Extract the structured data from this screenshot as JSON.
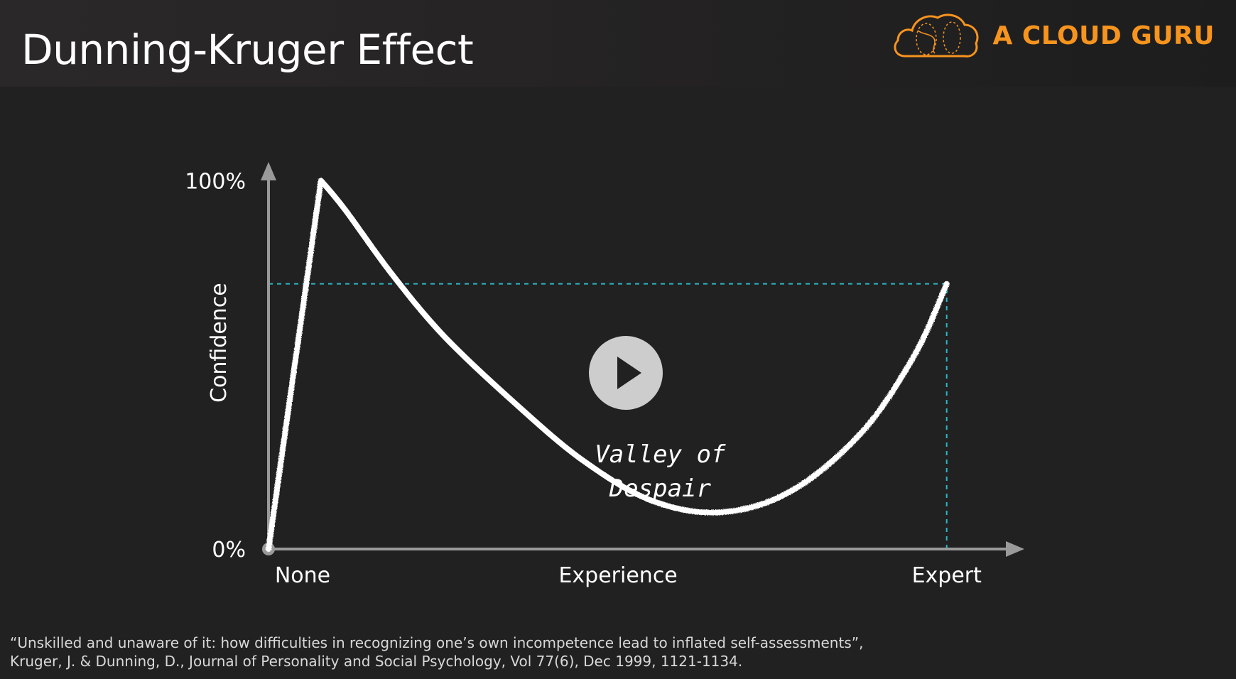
{
  "header": {
    "title": "Dunning-Kruger Effect",
    "brand": "A CLOUD GURU",
    "brand_color": "#f7941e",
    "logo_icon": "cloud-logo-icon"
  },
  "player": {
    "play_icon": "play-icon"
  },
  "citation": {
    "line1": "“Unskilled and unaware of it: how difficulties in recognizing one’s own incompetence lead to inflated self-assessments”,",
    "line2": "Kruger, J. & Dunning, D., Journal of Personality and Social Psychology, Vol 77(6), Dec 1999, 1121-1134."
  },
  "chart_data": {
    "type": "line",
    "title": "",
    "xlabel": "Experience",
    "ylabel": "Confidence",
    "x_ticks": [
      {
        "x": 0,
        "label": "None"
      },
      {
        "x": 100,
        "label": "Experience"
      },
      {
        "x": 194,
        "label": "Expert"
      }
    ],
    "y_ticks": [
      {
        "y": 0,
        "label": "0%"
      },
      {
        "y": 100,
        "label": "100%"
      }
    ],
    "xlim": [
      0,
      216
    ],
    "ylim": [
      0,
      102
    ],
    "series": [
      {
        "name": "",
        "color": "#ffffff",
        "x": [
          0,
          15,
          22,
          35,
          50,
          70,
          90,
          110,
          130,
          150,
          170,
          185,
          194
        ],
        "y": [
          0,
          100,
          92,
          75,
          58,
          40,
          24,
          13,
          10,
          16,
          32,
          53,
          72
        ]
      }
    ],
    "reference_lines": [
      {
        "kind": "horizontal",
        "y": 72,
        "x_from": 0,
        "x_to": 194,
        "color": "#2bb7c4",
        "style": "dashed"
      },
      {
        "kind": "vertical",
        "x": 194,
        "y_from": 0,
        "y_to": 72,
        "color": "#2bb7c4",
        "style": "dashed"
      }
    ],
    "annotations": [
      {
        "lines": [
          "Valley of",
          "Despair"
        ],
        "x": 110,
        "y": 22
      }
    ],
    "grid": false,
    "legend": "none"
  }
}
